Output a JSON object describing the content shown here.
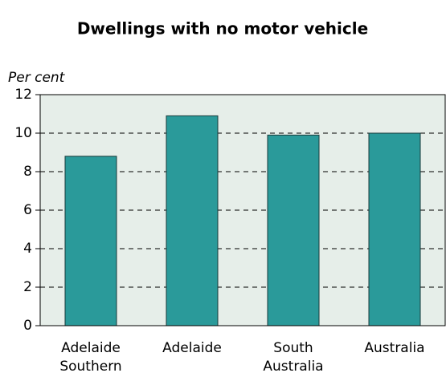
{
  "chart_data": {
    "type": "bar",
    "title": "Dwellings with no motor vehicle",
    "y_label": "Per cent",
    "categories": [
      [
        "Adelaide",
        "Southern"
      ],
      [
        "Adelaide"
      ],
      [
        "South",
        "Australia"
      ],
      [
        "Australia"
      ]
    ],
    "values": [
      8.8,
      10.9,
      9.9,
      10.0
    ],
    "color": "#2a9a9a",
    "ylim": [
      0,
      12
    ],
    "yticks": [
      0,
      2,
      4,
      6,
      8,
      10,
      12
    ],
    "grid": true
  }
}
